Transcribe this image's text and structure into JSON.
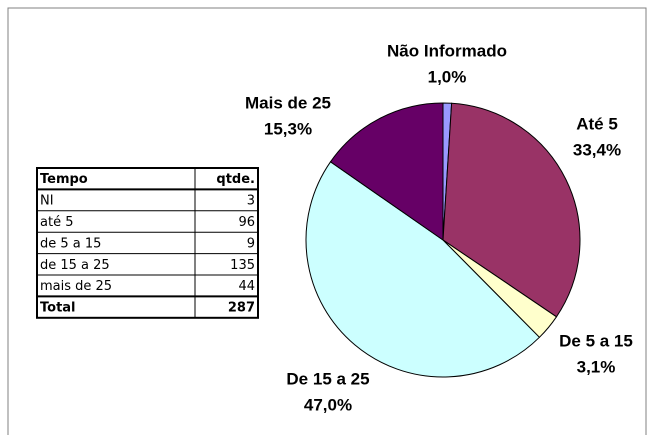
{
  "chart_data": {
    "type": "pie",
    "categories": [
      "Não Informado",
      "Até 5",
      "De 5 a 15",
      "De 15 a 25",
      "Mais de 25"
    ],
    "values": [
      1.0,
      33.4,
      3.1,
      47.0,
      15.3
    ],
    "value_labels": [
      "1,0%",
      "33,4%",
      "3,1%",
      "47,0%",
      "15,3%"
    ],
    "colors": [
      "#9999ff",
      "#993366",
      "#ffffcc",
      "#ccffff",
      "#660066"
    ]
  },
  "table": {
    "header": [
      "Tempo",
      "qtde."
    ],
    "rows": [
      [
        "NI",
        3
      ],
      [
        "até 5",
        96
      ],
      [
        "de 5 a 15",
        9
      ],
      [
        "de 15 a 25",
        135
      ],
      [
        "mais de 25",
        44
      ]
    ],
    "total": [
      "Total",
      287
    ]
  }
}
